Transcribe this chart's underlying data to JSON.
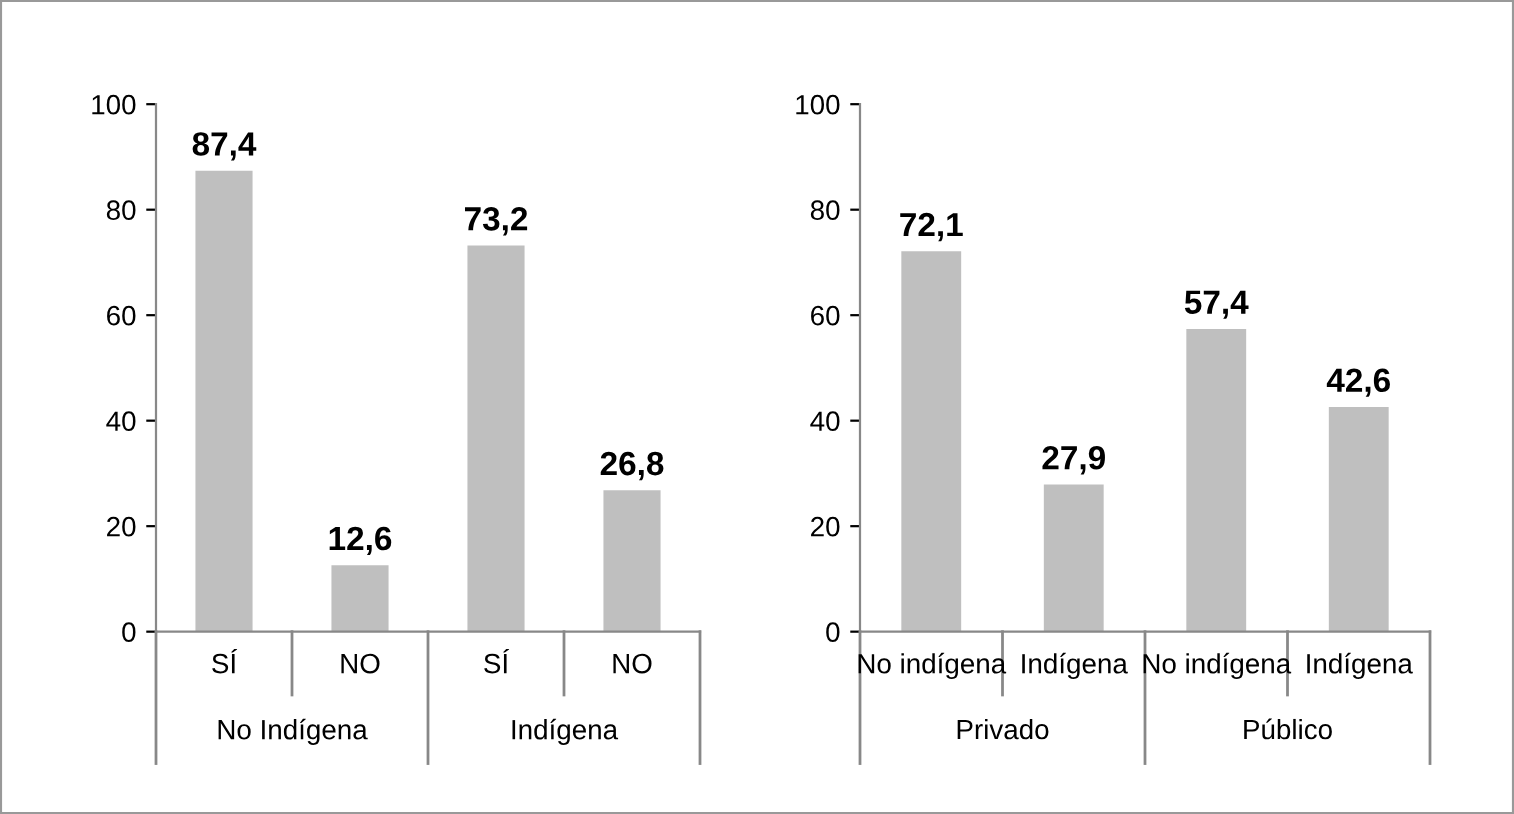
{
  "chart_data": [
    {
      "type": "bar",
      "categories": [
        "SÍ",
        "NO",
        "SÍ",
        "NO"
      ],
      "values": [
        87.4,
        12.6,
        73.2,
        26.8
      ],
      "color": "#bfbfbf",
      "value_labels": [
        "87,4",
        "12,6",
        "73,2",
        "26,8"
      ],
      "ylim": [
        0,
        100
      ],
      "yticks": [
        0,
        20,
        40,
        60,
        80,
        100
      ],
      "grid": false,
      "annotations": [
        "No Indígena",
        "Indígena"
      ]
    },
    {
      "type": "bar",
      "categories": [
        "No indígena",
        "Indígena",
        "No indígena",
        "Indígena"
      ],
      "values": [
        72.1,
        27.9,
        57.4,
        42.6
      ],
      "color": "#bfbfbf",
      "value_labels": [
        "72,1",
        "27,9",
        "57,4",
        "42,6"
      ],
      "ylim": [
        0,
        100
      ],
      "yticks": [
        0,
        20,
        40,
        60,
        80,
        100
      ],
      "grid": false,
      "annotations": [
        "Privado",
        "Público"
      ]
    }
  ]
}
